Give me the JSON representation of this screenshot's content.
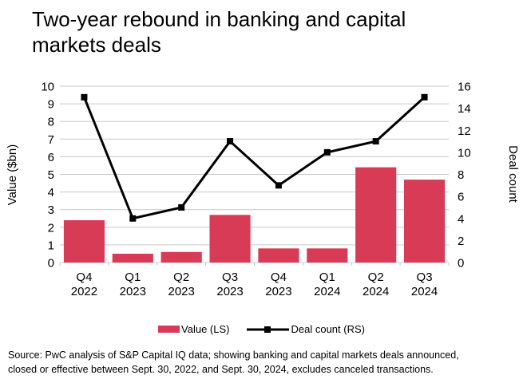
{
  "title": {
    "line1": "Two-year rebound in banking and capital",
    "line2": "markets deals"
  },
  "chart_data": {
    "type": "combo-bar-line",
    "categories": [
      [
        "Q4",
        "2022"
      ],
      [
        "Q1",
        "2023"
      ],
      [
        "Q2",
        "2023"
      ],
      [
        "Q3",
        "2023"
      ],
      [
        "Q4",
        "2023"
      ],
      [
        "Q1",
        "2024"
      ],
      [
        "Q2",
        "2024"
      ],
      [
        "Q3",
        "2024"
      ]
    ],
    "series": [
      {
        "name": "Value (LS)",
        "type": "bar",
        "axis": "left",
        "color": "#d73b56",
        "values": [
          2.4,
          0.5,
          0.6,
          2.7,
          0.8,
          0.8,
          5.4,
          4.7
        ]
      },
      {
        "name": "Deal count (RS)",
        "type": "line",
        "axis": "right",
        "color": "#000000",
        "values": [
          15,
          4,
          5,
          11,
          7,
          10,
          11,
          15
        ]
      }
    ],
    "left_axis": {
      "label": "Value ($bn)",
      "min": 0,
      "max": 10,
      "step": 1
    },
    "right_axis": {
      "label": "Deal count",
      "min": 0,
      "max": 16,
      "step": 2
    },
    "grid": true,
    "grid_color": "#c9c9c9",
    "legend_position": "bottom"
  },
  "source": {
    "line1": "Source: PwC analysis of S&P Capital IQ data; showing banking and capital markets deals announced,",
    "line2": "closed or effective between Sept. 30, 2022, and Sept. 30, 2024, excludes canceled transactions."
  }
}
